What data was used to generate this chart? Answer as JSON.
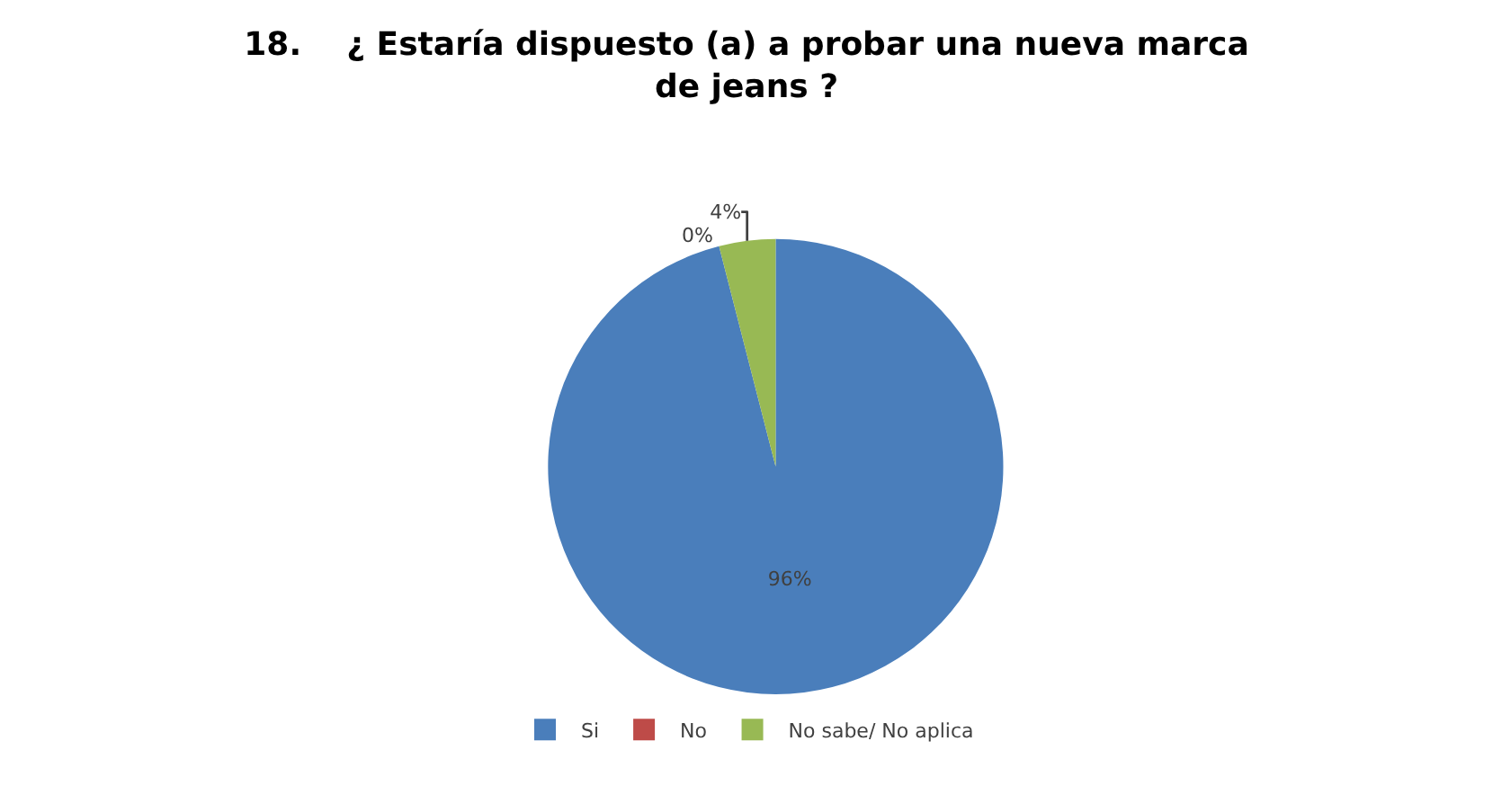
{
  "chart_data": {
    "type": "pie",
    "title": "18.    ¿ Estaría dispuesto (a) a probar una nueva marca\nde jeans ?",
    "categories": [
      "Si",
      "No",
      "No sabe/ No aplica"
    ],
    "values": [
      96,
      0,
      4
    ],
    "colors": [
      "#4a7ebb",
      "#be4b48",
      "#98b954"
    ],
    "value_labels": [
      "96%",
      "0%",
      "4%"
    ],
    "legend": "bottom"
  }
}
